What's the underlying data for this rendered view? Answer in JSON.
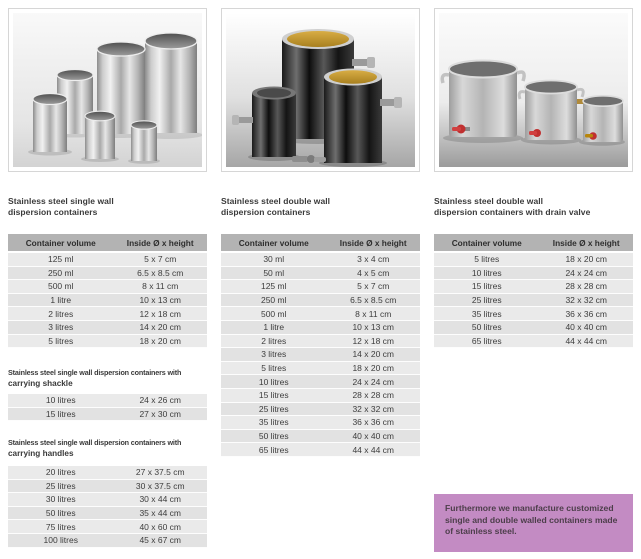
{
  "colors": {
    "table_header_bg": "#b3b3b3",
    "table_header_text": "#2e2e2e",
    "row_bg": "#eaeaea",
    "row_alt_bg": "#e2e2e2",
    "row_text": "#3d3d3d",
    "heading_text": "#3a3a3a",
    "note_bg": "#c38bc3",
    "note_text": "#4c3e4a",
    "photo_border": "#d6d6d6"
  },
  "table_headers": {
    "volume": "Container volume",
    "size": "Inside Ø x height"
  },
  "left": {
    "heading_line1": "Stainless steel single wall",
    "heading_line2": "dispersion containers",
    "main_rows": [
      [
        "125 ml",
        "5 x 7 cm"
      ],
      [
        "250 ml",
        "6.5 x 8.5 cm"
      ],
      [
        "500 ml",
        "8 x 11 cm"
      ],
      [
        "1 litre",
        "10 x 13 cm"
      ],
      [
        "2 litres",
        "12 x 18 cm"
      ],
      [
        "3 litres",
        "14 x 20 cm"
      ],
      [
        "5 litres",
        "18 x 20 cm"
      ]
    ],
    "shackle": {
      "heading_line1": "Stainless steel single wall dispersion containers with",
      "heading_line2": "carrying shackle",
      "rows": [
        [
          "10 litres",
          "24 x 26 cm"
        ],
        [
          "15 litres",
          "27 x 30 cm"
        ]
      ]
    },
    "handles": {
      "heading_line1": "Stainless steel single wall dispersion containers with",
      "heading_line2": "carrying handles",
      "rows": [
        [
          "20 litres",
          "27 x 37.5 cm"
        ],
        [
          "25 litres",
          "30 x 37.5 cm"
        ],
        [
          "30 litres",
          "30 x 44 cm"
        ],
        [
          "50 litres",
          "35 x 44 cm"
        ],
        [
          "75 litres",
          "40 x 60 cm"
        ],
        [
          "100 litres",
          "45 x 67 cm"
        ]
      ]
    }
  },
  "middle": {
    "heading_line1": "Stainless steel double wall",
    "heading_line2": "dispersion containers",
    "rows": [
      [
        "30 ml",
        "3 x 4 cm"
      ],
      [
        "50 ml",
        "4 x 5 cm"
      ],
      [
        "125 ml",
        "5 x 7 cm"
      ],
      [
        "250 ml",
        "6.5 x 8.5 cm"
      ],
      [
        "500 ml",
        "8 x 11 cm"
      ],
      [
        "1 litre",
        "10 x 13 cm"
      ],
      [
        "2 litres",
        "12 x 18 cm"
      ],
      [
        "3 litres",
        "14 x 20 cm"
      ],
      [
        "5 litres",
        "18 x 20 cm"
      ],
      [
        "10 litres",
        "24 x 24 cm"
      ],
      [
        "15 litres",
        "28 x 28 cm"
      ],
      [
        "25 litres",
        "32 x 32 cm"
      ],
      [
        "35 litres",
        "36 x 36 cm"
      ],
      [
        "50 litres",
        "40 x 40 cm"
      ],
      [
        "65 litres",
        "44 x 44 cm"
      ]
    ]
  },
  "right": {
    "heading_line1": "Stainless steel double wall",
    "heading_line2": "dispersion containers with drain valve",
    "rows": [
      [
        "5 litres",
        "18 x 20 cm"
      ],
      [
        "10 litres",
        "24 x 24 cm"
      ],
      [
        "15 litres",
        "28 x 28 cm"
      ],
      [
        "25 litres",
        "32 x 32 cm"
      ],
      [
        "35 litres",
        "36 x 36 cm"
      ],
      [
        "50 litres",
        "40 x 40 cm"
      ],
      [
        "65 litres",
        "44 x 44 cm"
      ]
    ],
    "note": "Furthermore we manufacture customized single and double walled containers made of stainless steel."
  }
}
